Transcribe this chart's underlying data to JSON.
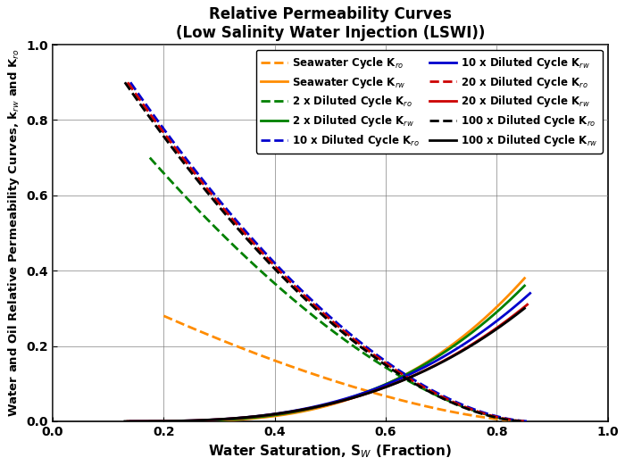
{
  "title_line1": "Relative Permeability Curves",
  "title_line2": "(Low Salinity Water Injection (LSWI))",
  "xlabel": "Water Saturation, S$_W$ (Fraction)",
  "ylabel": "Water and Oil Relative Permeability Curves, k$_{rw}$ and K$_{ro}$",
  "xlim": [
    0.0,
    1.0
  ],
  "ylim": [
    0.0,
    1.0
  ],
  "xticks": [
    0.0,
    0.2,
    0.4,
    0.6,
    0.8,
    1.0
  ],
  "yticks": [
    0.0,
    0.2,
    0.4,
    0.6,
    0.8,
    1.0
  ],
  "cycles": [
    {
      "name": "Seawater Cycle",
      "color": "#FF8C00",
      "Swi": 0.2,
      "Sor": 0.15,
      "krw_max": 0.38,
      "kro_max": 0.28,
      "nw": 2.8,
      "no": 1.5
    },
    {
      "name": "2 x Diluted Cycle",
      "color": "#008000",
      "Swi": 0.175,
      "Sor": 0.15,
      "krw_max": 0.36,
      "kro_max": 0.7,
      "nw": 2.8,
      "no": 1.6
    },
    {
      "name": "10 x Diluted Cycle",
      "color": "#0000CD",
      "Swi": 0.14,
      "Sor": 0.14,
      "krw_max": 0.34,
      "kro_max": 0.9,
      "nw": 2.8,
      "no": 1.7
    },
    {
      "name": "20 x Diluted Cycle",
      "color": "#CC0000",
      "Swi": 0.135,
      "Sor": 0.145,
      "krw_max": 0.31,
      "kro_max": 0.9,
      "nw": 2.8,
      "no": 1.7
    },
    {
      "name": "100 x Diluted Cycle",
      "color": "#000000",
      "Swi": 0.13,
      "Sor": 0.15,
      "krw_max": 0.3,
      "kro_max": 0.9,
      "nw": 2.8,
      "no": 1.7
    }
  ],
  "legend_kro_suffix": "K$_{ro}$",
  "legend_krw_suffix": "K$_{rw}$",
  "figsize": [
    7.0,
    5.22
  ],
  "dpi": 100
}
